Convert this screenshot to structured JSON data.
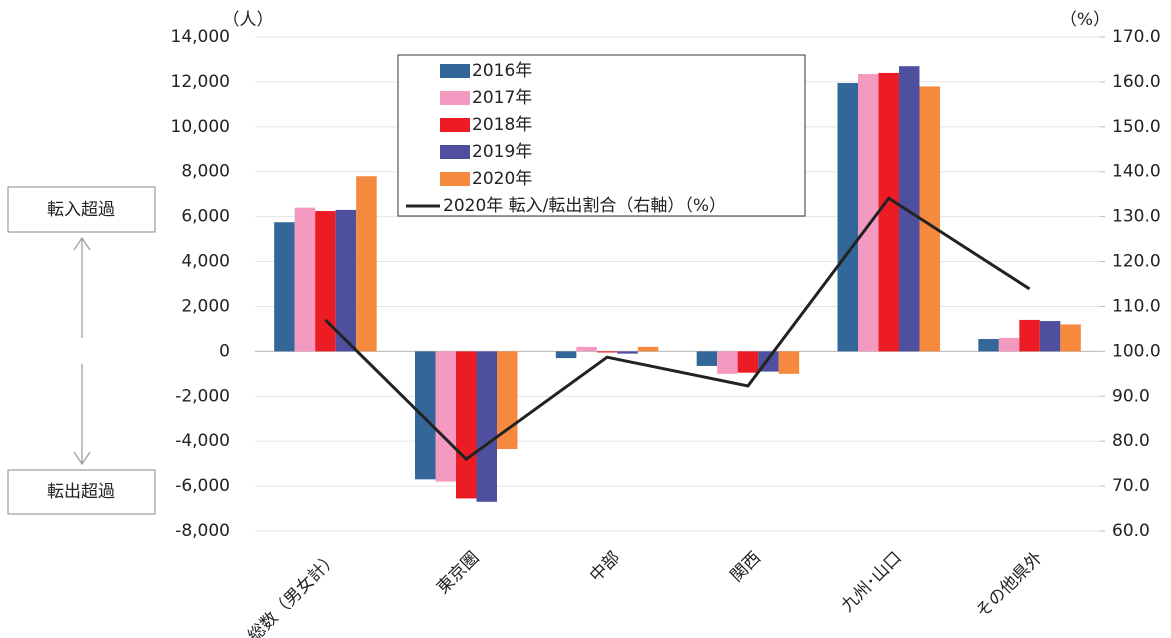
{
  "chart_data": {
    "type": "bar",
    "categories": [
      "総数（男女計）",
      "東京圏",
      "中部",
      "関西",
      "九州･山口",
      "その他県外"
    ],
    "series": [
      {
        "name": "2016年",
        "color": "#336699",
        "values": [
          5750,
          -5700,
          -300,
          -650,
          11950,
          550
        ]
      },
      {
        "name": "2017年",
        "color": "#f49ac1",
        "values": [
          6400,
          -5800,
          200,
          -1000,
          12350,
          600
        ]
      },
      {
        "name": "2018年",
        "color": "#ed1c24",
        "values": [
          6250,
          -6550,
          -50,
          -950,
          12400,
          1400
        ]
      },
      {
        "name": "2019年",
        "color": "#4f4fa0",
        "values": [
          6300,
          -6700,
          -100,
          -900,
          12700,
          1350
        ]
      },
      {
        "name": "2020年",
        "color": "#f58a3e",
        "values": [
          7800,
          -4350,
          200,
          -1000,
          11800,
          1200
        ]
      },
      {
        "name": "2020年 転入/転出割合（右軸）（%）",
        "type": "line",
        "axis": "y2",
        "color": "#222222",
        "values": [
          107.0,
          76.0,
          98.7,
          92.3,
          134.1,
          113.9
        ]
      }
    ],
    "ylabel": "（人）",
    "y2label": "（%）",
    "ylim": [
      -8000,
      14000
    ],
    "yticks": [
      {
        "value": -8000,
        "label": "-8,000"
      },
      {
        "value": -6000,
        "label": "-6,000"
      },
      {
        "value": -4000,
        "label": "-4,000"
      },
      {
        "value": -2000,
        "label": "-2,000"
      },
      0,
      {
        "value": 2000,
        "label": "2,000"
      },
      {
        "value": 4000,
        "label": "4,000"
      },
      {
        "value": 6000,
        "label": "6,000"
      },
      {
        "value": 8000,
        "label": "8,000"
      },
      {
        "value": 10000,
        "label": "10,000"
      },
      {
        "value": 12000,
        "label": "12,000"
      },
      {
        "value": 14000,
        "label": "14,000"
      }
    ],
    "y2lim": [
      60,
      170
    ],
    "y2ticks": [
      {
        "value": 60,
        "label": "60.0"
      },
      {
        "value": 70,
        "label": "70.0"
      },
      {
        "value": 80,
        "label": "80.0"
      },
      {
        "value": 90,
        "label": "90.0"
      },
      {
        "value": 100,
        "label": "100.0"
      },
      {
        "value": 110,
        "label": "110.0"
      },
      {
        "value": 120,
        "label": "120.0"
      },
      {
        "value": 130,
        "label": "130.0"
      },
      {
        "value": 140,
        "label": "140.0"
      },
      {
        "value": 150,
        "label": "150.0"
      },
      {
        "value": 160,
        "label": "160.0"
      },
      {
        "value": 170,
        "label": "170.0"
      }
    ],
    "grid": true,
    "annotations": [
      "転入超過",
      "転出超過"
    ]
  }
}
